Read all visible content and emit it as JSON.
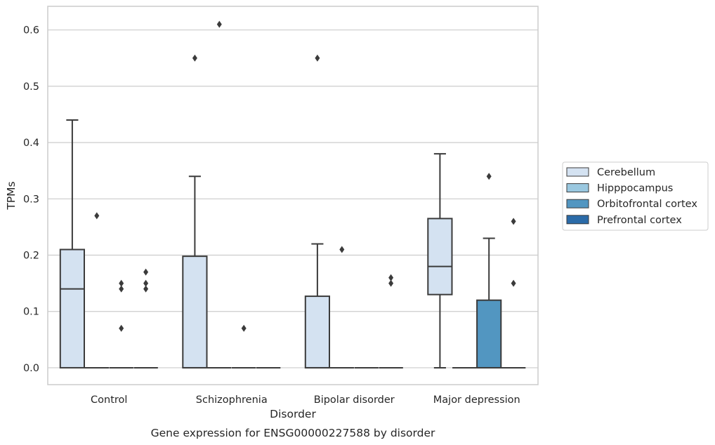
{
  "chart_data": {
    "type": "box",
    "title": "",
    "caption": "Gene expression for ENSG00000227588 by disorder",
    "xlabel": "Disorder",
    "ylabel": "TPMs",
    "ylim": [
      -0.03,
      0.642
    ],
    "yticks": [
      0.0,
      0.1,
      0.2,
      0.3,
      0.4,
      0.5,
      0.6
    ],
    "ytick_labels": [
      "0.0",
      "0.1",
      "0.2",
      "0.3",
      "0.4",
      "0.5",
      "0.6"
    ],
    "grid": true,
    "legend_position": "right-center",
    "categories": [
      "Control",
      "Schizophrenia",
      "Bipolar disorder",
      "Major depression"
    ],
    "series": [
      {
        "name": "Cerebellum",
        "color": "#d4e2f1",
        "boxes": [
          {
            "q1": 0.0,
            "median": 0.14,
            "q3": 0.21,
            "whisker_low": 0.0,
            "whisker_high": 0.44,
            "outliers": []
          },
          {
            "q1": 0.0,
            "median": 0.0,
            "q3": 0.198,
            "whisker_low": 0.0,
            "whisker_high": 0.34,
            "outliers": [
              0.55
            ]
          },
          {
            "q1": 0.0,
            "median": 0.0,
            "q3": 0.127,
            "whisker_low": 0.0,
            "whisker_high": 0.22,
            "outliers": [
              0.55
            ]
          },
          {
            "q1": 0.13,
            "median": 0.18,
            "q3": 0.265,
            "whisker_low": 0.0,
            "whisker_high": 0.38,
            "outliers": []
          }
        ]
      },
      {
        "name": "Hipppocampus",
        "color": "#9ac8e0",
        "boxes": [
          {
            "q1": 0.0,
            "median": 0.0,
            "q3": 0.0,
            "whisker_low": 0.0,
            "whisker_high": 0.0,
            "outliers": [
              0.27
            ]
          },
          {
            "q1": 0.0,
            "median": 0.0,
            "q3": 0.0,
            "whisker_low": 0.0,
            "whisker_high": 0.0,
            "outliers": [
              0.61
            ]
          },
          {
            "q1": 0.0,
            "median": 0.0,
            "q3": 0.0,
            "whisker_low": 0.0,
            "whisker_high": 0.0,
            "outliers": [
              0.21
            ]
          },
          {
            "q1": 0.0,
            "median": 0.0,
            "q3": 0.0,
            "whisker_low": 0.0,
            "whisker_high": 0.0,
            "outliers": []
          }
        ]
      },
      {
        "name": "Orbitofrontal cortex",
        "color": "#5296c1",
        "boxes": [
          {
            "q1": 0.0,
            "median": 0.0,
            "q3": 0.0,
            "whisker_low": 0.0,
            "whisker_high": 0.0,
            "outliers": [
              0.07,
              0.14,
              0.15
            ]
          },
          {
            "q1": 0.0,
            "median": 0.0,
            "q3": 0.0,
            "whisker_low": 0.0,
            "whisker_high": 0.0,
            "outliers": [
              0.07
            ]
          },
          {
            "q1": 0.0,
            "median": 0.0,
            "q3": 0.0,
            "whisker_low": 0.0,
            "whisker_high": 0.0,
            "outliers": []
          },
          {
            "q1": 0.0,
            "median": 0.0,
            "q3": 0.12,
            "whisker_low": 0.0,
            "whisker_high": 0.23,
            "outliers": [
              0.34
            ]
          }
        ]
      },
      {
        "name": "Prefrontal cortex",
        "color": "#2b6ba8",
        "boxes": [
          {
            "q1": 0.0,
            "median": 0.0,
            "q3": 0.0,
            "whisker_low": 0.0,
            "whisker_high": 0.0,
            "outliers": [
              0.14,
              0.15,
              0.17
            ]
          },
          {
            "q1": 0.0,
            "median": 0.0,
            "q3": 0.0,
            "whisker_low": 0.0,
            "whisker_high": 0.0,
            "outliers": []
          },
          {
            "q1": 0.0,
            "median": 0.0,
            "q3": 0.0,
            "whisker_low": 0.0,
            "whisker_high": 0.0,
            "outliers": [
              0.15,
              0.16
            ]
          },
          {
            "q1": 0.0,
            "median": 0.0,
            "q3": 0.0,
            "whisker_low": 0.0,
            "whisker_high": 0.0,
            "outliers": [
              0.15,
              0.26
            ]
          }
        ]
      }
    ]
  }
}
